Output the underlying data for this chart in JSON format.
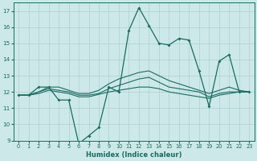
{
  "xlabel": "Humidex (Indice chaleur)",
  "bg_color": "#cde8e8",
  "grid_color": "#aed0d0",
  "line_color": "#1a6b60",
  "xlim": [
    -0.5,
    23.5
  ],
  "ylim": [
    9,
    17.5
  ],
  "yticks": [
    9,
    10,
    11,
    12,
    13,
    14,
    15,
    16,
    17
  ],
  "xticks": [
    0,
    1,
    2,
    3,
    4,
    5,
    6,
    7,
    8,
    9,
    10,
    11,
    12,
    13,
    14,
    15,
    16,
    17,
    18,
    19,
    20,
    21,
    22,
    23
  ],
  "line1": [
    11.8,
    11.8,
    12.3,
    12.3,
    11.5,
    11.5,
    8.8,
    9.3,
    9.8,
    12.3,
    12.0,
    15.8,
    17.2,
    16.1,
    15.0,
    14.9,
    15.3,
    15.2,
    13.3,
    11.1,
    13.9,
    14.3,
    12.0,
    12.0
  ],
  "line2": [
    11.8,
    11.8,
    11.9,
    12.1,
    12.0,
    11.9,
    11.7,
    11.7,
    11.85,
    12.0,
    12.1,
    12.2,
    12.3,
    12.3,
    12.2,
    12.0,
    11.9,
    11.8,
    11.7,
    11.6,
    11.8,
    11.9,
    12.0,
    12.0
  ],
  "line3": [
    11.8,
    11.8,
    12.0,
    12.2,
    12.1,
    12.0,
    11.8,
    11.8,
    11.9,
    12.2,
    12.4,
    12.6,
    12.8,
    12.9,
    12.6,
    12.3,
    12.2,
    12.1,
    12.0,
    11.7,
    11.9,
    12.0,
    12.0,
    12.0
  ],
  "line4": [
    11.8,
    11.8,
    12.0,
    12.3,
    12.3,
    12.1,
    11.9,
    11.9,
    12.1,
    12.5,
    12.8,
    13.0,
    13.2,
    13.3,
    13.0,
    12.7,
    12.5,
    12.3,
    12.1,
    11.9,
    12.1,
    12.3,
    12.1,
    12.0
  ]
}
